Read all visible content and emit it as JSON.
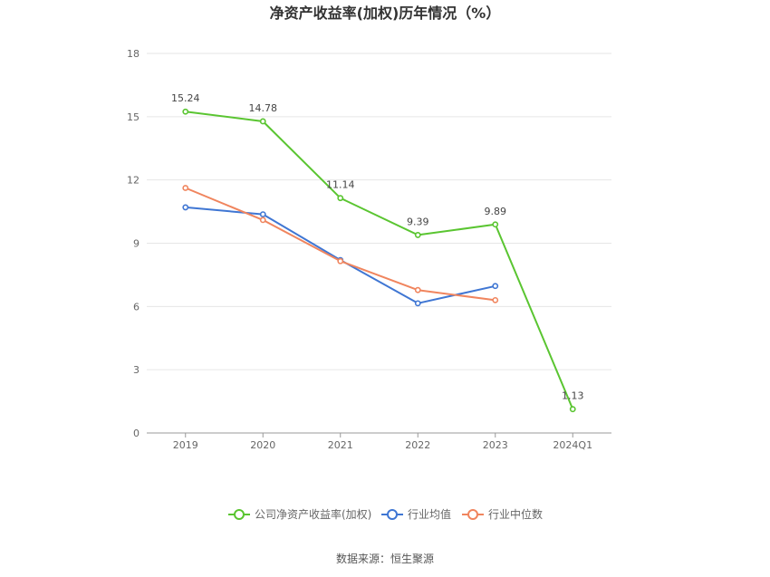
{
  "chart_data": {
    "type": "line",
    "title": "净资产收益率(加权)历年情况（%）",
    "categories": [
      "2019",
      "2020",
      "2021",
      "2022",
      "2023",
      "2024Q1"
    ],
    "ylim": [
      0,
      18
    ],
    "yticks": [
      0,
      3,
      6,
      9,
      12,
      15,
      18
    ],
    "grid": true,
    "legend_position": "bottom",
    "series": [
      {
        "name": "公司净资产收益率(加权)",
        "color": "#5ac531",
        "values": [
          15.24,
          14.78,
          11.14,
          9.39,
          9.89,
          1.13
        ],
        "labels": [
          "15.24",
          "14.78",
          "11.14",
          "9.39",
          "9.89",
          "1.13"
        ]
      },
      {
        "name": "行业均值",
        "color": "#3f76d3",
        "values": [
          10.7,
          10.37,
          8.2,
          6.15,
          6.97,
          null
        ]
      },
      {
        "name": "行业中位数",
        "color": "#f0855e",
        "values": [
          11.62,
          10.1,
          8.15,
          6.78,
          6.3,
          null
        ]
      }
    ]
  },
  "source_text": "数据来源：恒生聚源"
}
